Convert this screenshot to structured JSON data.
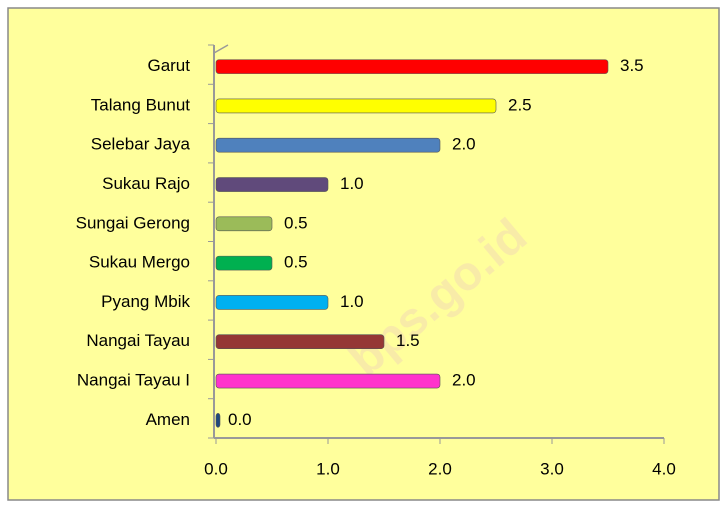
{
  "chart_data": {
    "type": "bar",
    "orientation": "horizontal",
    "categories": [
      "Garut",
      "Talang Bunut",
      "Selebar Jaya",
      "Sukau Rajo",
      "Sungai Gerong",
      "Sukau Mergo",
      "Pyang Mbik",
      "Nangai Tayau",
      "Nangai Tayau I",
      "Amen"
    ],
    "values": [
      3.5,
      2.5,
      2.0,
      1.0,
      0.5,
      0.5,
      1.0,
      1.5,
      2.0,
      0.0
    ],
    "value_labels": [
      "3.5",
      "2.5",
      "2.0",
      "1.0",
      "0.5",
      "0.5",
      "1.0",
      "1.5",
      "2.0",
      "0.0"
    ],
    "colors": [
      "#ff0000",
      "#ffff00",
      "#4f81bd",
      "#604a7b",
      "#9bbb59",
      "#00b050",
      "#00b0f0",
      "#953735",
      "#ff33cc",
      "#1f497d"
    ],
    "xlim": [
      0,
      4
    ],
    "xticks": [
      {
        "value": 0,
        "label": "0.0"
      },
      {
        "value": 1,
        "label": "1.0"
      },
      {
        "value": 2,
        "label": "2.0"
      },
      {
        "value": 3,
        "label": "3.0"
      },
      {
        "value": 4,
        "label": "4.0"
      }
    ],
    "watermark": "bps.go.id"
  }
}
